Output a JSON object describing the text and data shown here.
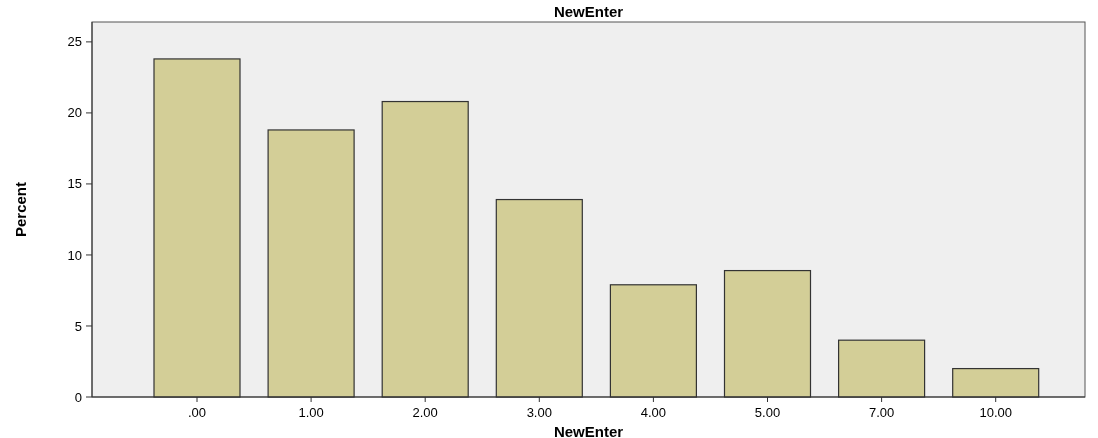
{
  "chart_data": {
    "type": "bar",
    "title": "NewEnter",
    "xlabel": "NewEnter",
    "ylabel": "Percent",
    "categories": [
      ".00",
      "1.00",
      "2.00",
      "3.00",
      "4.00",
      "5.00",
      "7.00",
      "10.00"
    ],
    "values": [
      23.8,
      18.8,
      20.8,
      13.9,
      7.9,
      8.9,
      4.0,
      2.0
    ],
    "color": "#d3ce97",
    "ylim": [
      0,
      26.4
    ],
    "yticks": [
      0,
      5,
      10,
      15,
      20,
      25
    ],
    "grid": false
  }
}
